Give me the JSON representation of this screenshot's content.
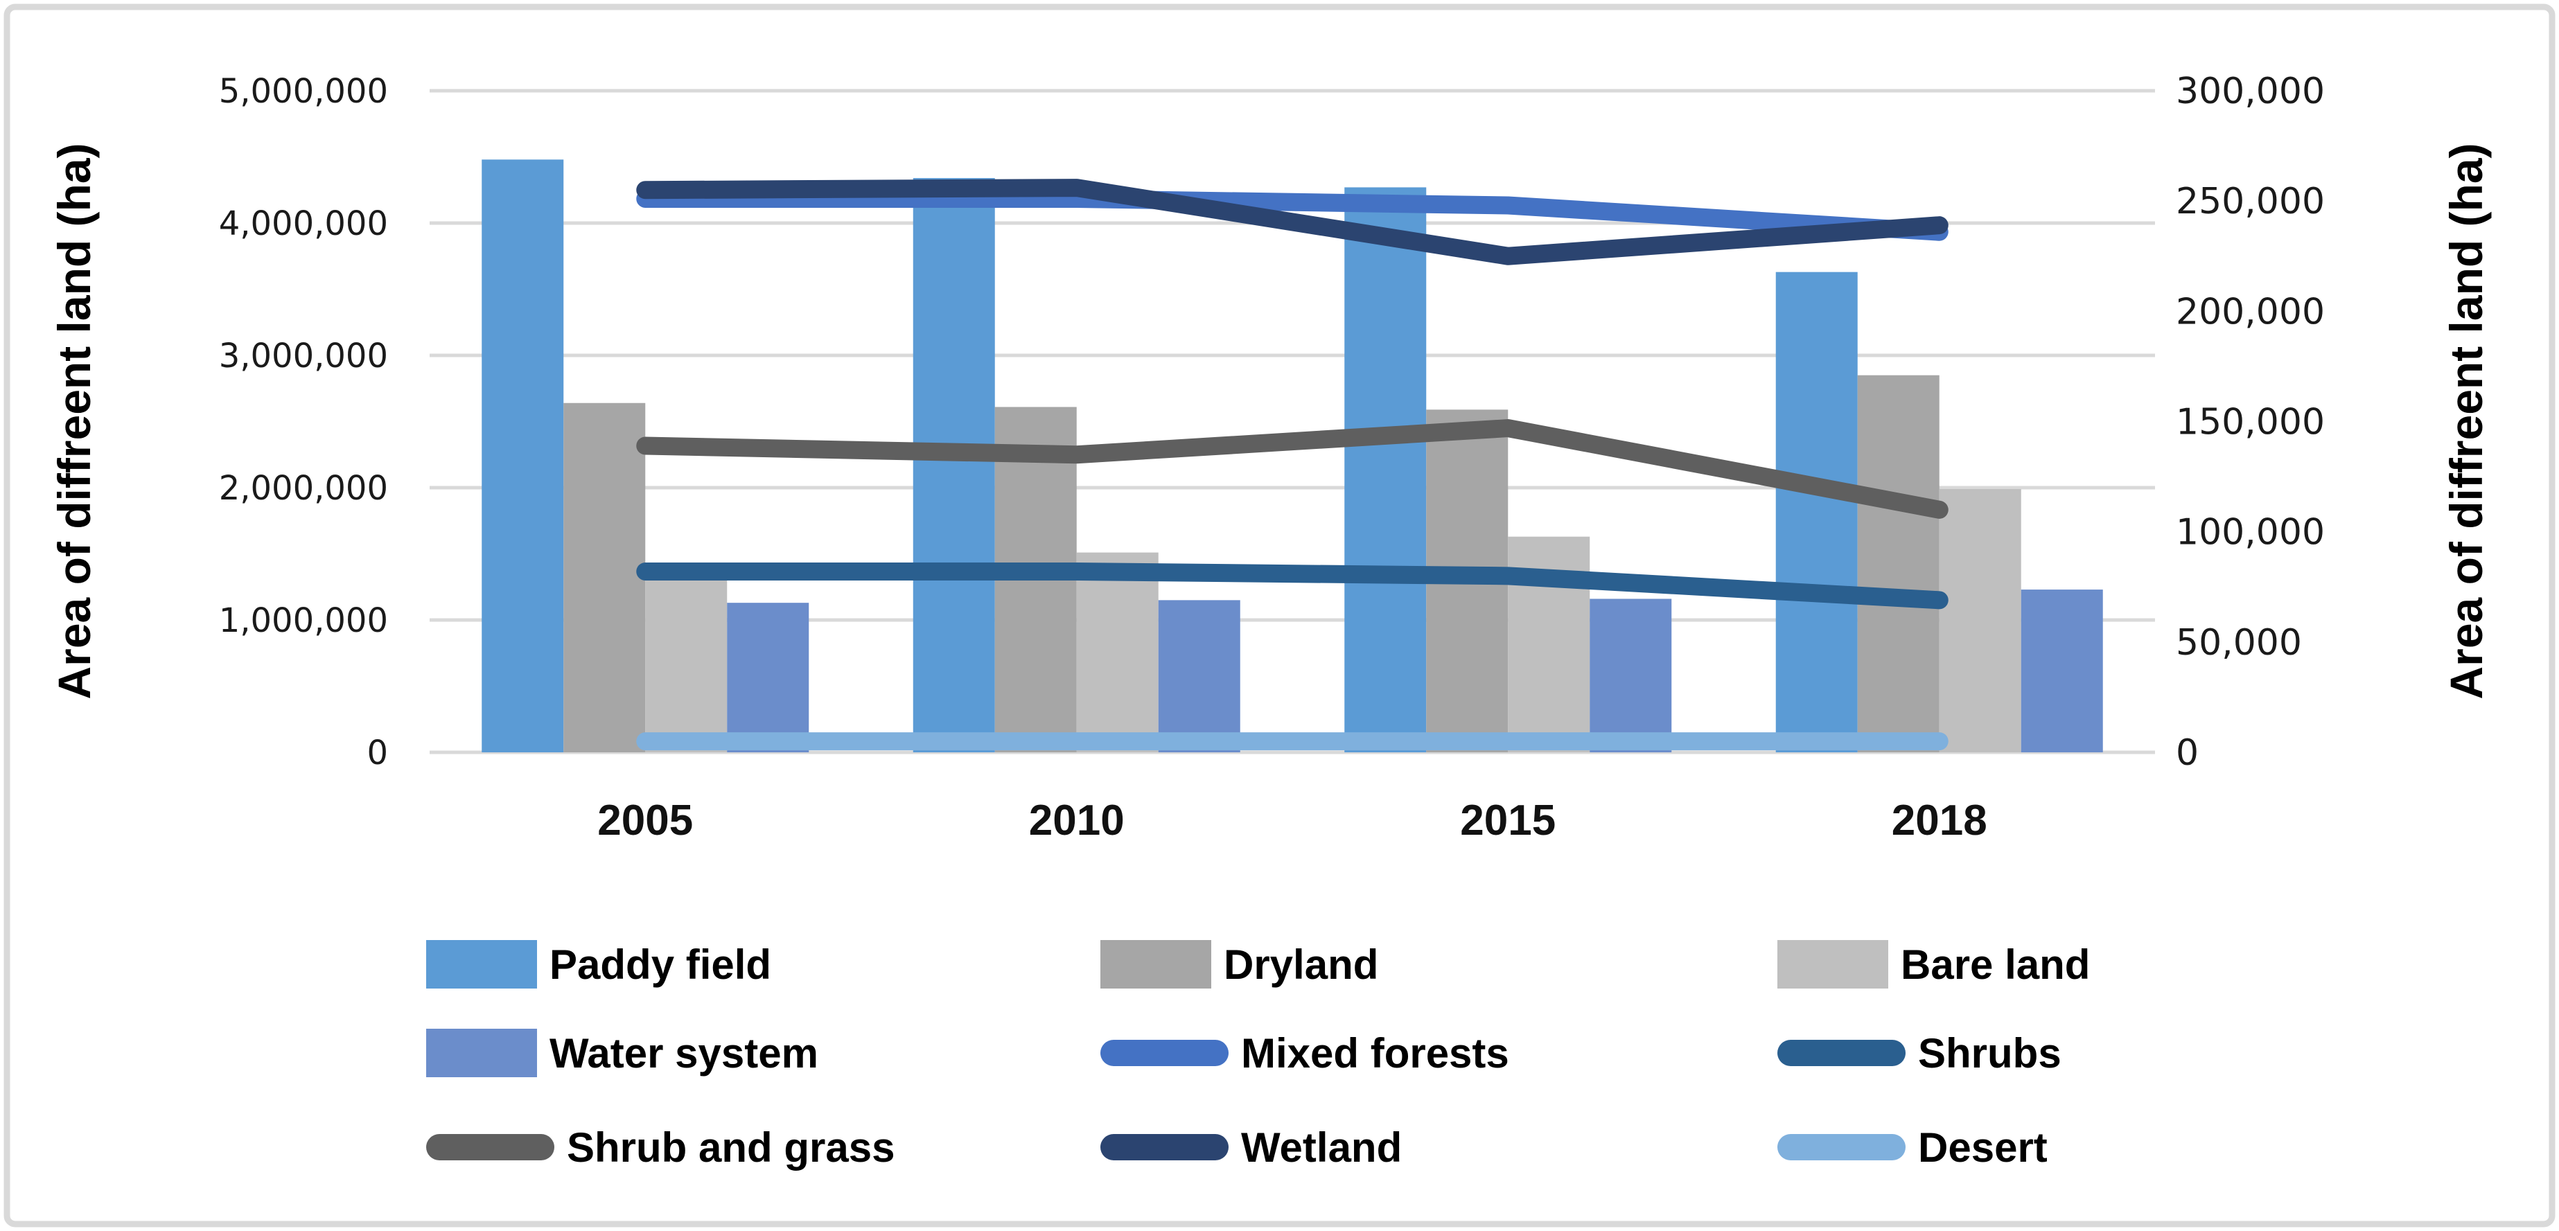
{
  "figure": {
    "background": "#FFFFFF",
    "border_color": "#D9D9D9",
    "gridline_color": "#D9D9D9",
    "text_color": "#111111"
  },
  "left_axis": {
    "title": "Area of diffreent land (ha)",
    "ticks": [
      "5,000,000",
      "4,000,000",
      "3,000,000",
      "2,000,000",
      "1,000,000",
      "0"
    ],
    "min": 0,
    "max": 5000000
  },
  "right_axis": {
    "title": "Area of diffreent land (ha)",
    "ticks": [
      "300,000",
      "250,000",
      "200,000",
      "150,000",
      "100,000",
      "50,000",
      "0"
    ],
    "min": 0,
    "max": 300000
  },
  "x_axis": {
    "categories": [
      "2005",
      "2010",
      "2015",
      "2018"
    ]
  },
  "chart_data": {
    "type": "combo bar+line, dual axis",
    "categories": [
      "2005",
      "2010",
      "2015",
      "2018"
    ],
    "left_ylim": [
      0,
      5000000
    ],
    "right_ylim": [
      0,
      300000
    ],
    "grid": "horizontal gridlines at left-axis 1,000,000 steps",
    "legend_position": "bottom, 3 columns x 3 rows",
    "bar_series": [
      {
        "name": "Paddy field",
        "type": "bar",
        "axis": "left",
        "color": "#5B9BD5",
        "values": [
          4480000,
          4340000,
          4270000,
          3630000
        ]
      },
      {
        "name": "Dryland",
        "type": "bar",
        "axis": "left",
        "color": "#A6A6A6",
        "values": [
          2640000,
          2610000,
          2590000,
          2850000
        ]
      },
      {
        "name": "Bare land",
        "type": "bar",
        "axis": "left",
        "color": "#BFBFBF",
        "values": [
          1300000,
          1510000,
          1630000,
          1990000
        ]
      },
      {
        "name": "Water system",
        "type": "bar",
        "axis": "left",
        "color": "#6B8DCB",
        "values": [
          1130000,
          1150000,
          1160000,
          1230000
        ]
      }
    ],
    "line_series": [
      {
        "name": "Mixed forests",
        "type": "line",
        "axis": "right",
        "color": "#4472C4",
        "values": [
          251000,
          251000,
          248000,
          236000
        ]
      },
      {
        "name": "Shrubs",
        "type": "line",
        "axis": "right",
        "color": "#2A5F8F",
        "values": [
          82000,
          82000,
          80000,
          69000
        ]
      },
      {
        "name": "Shrub and grass",
        "type": "line",
        "axis": "right",
        "color": "#5F5F5F",
        "values": [
          139000,
          135000,
          147000,
          110000
        ]
      },
      {
        "name": "Wetland",
        "type": "line",
        "axis": "right",
        "color": "#2B4470",
        "values": [
          255000,
          256000,
          225000,
          239000
        ]
      },
      {
        "name": "Desert",
        "type": "line",
        "axis": "right",
        "color": "#7FB0DD",
        "values": [
          5000,
          5000,
          5000,
          5000
        ]
      }
    ]
  }
}
